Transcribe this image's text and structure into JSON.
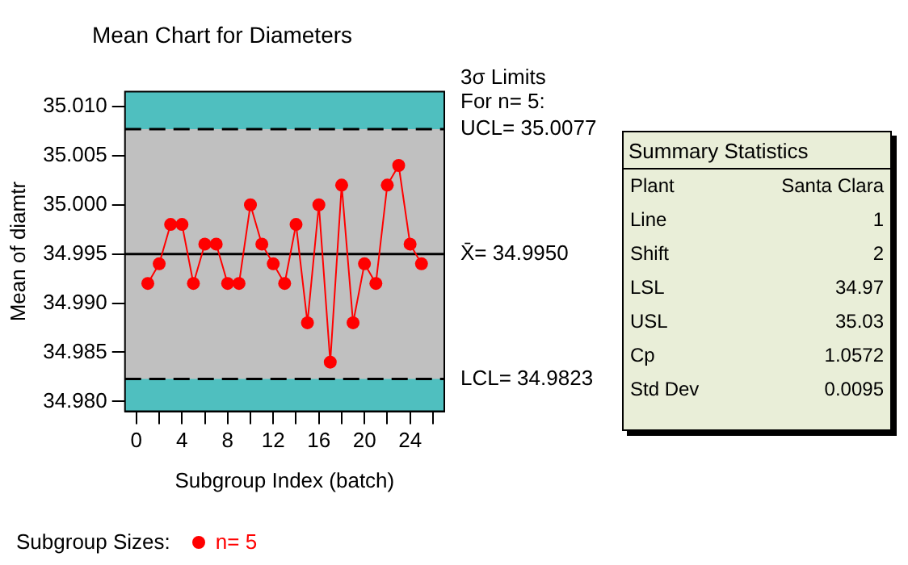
{
  "chart_data": [
    {
      "type": "line",
      "title": "Mean Chart for Diameters",
      "xlabel": "Subgroup Index (batch)",
      "ylabel": "Mean of diamtr",
      "x": [
        1,
        2,
        3,
        4,
        5,
        6,
        7,
        8,
        9,
        10,
        11,
        12,
        13,
        14,
        15,
        16,
        17,
        18,
        19,
        20,
        21,
        22,
        23,
        24,
        25
      ],
      "series": [
        {
          "name": "n= 5",
          "color": "#ff0000",
          "values": [
            34.992,
            34.994,
            34.998,
            34.998,
            34.992,
            34.996,
            34.996,
            34.992,
            34.992,
            35.0,
            34.996,
            34.994,
            34.992,
            34.998,
            34.988,
            35.0,
            34.984,
            35.002,
            34.988,
            34.994,
            34.992,
            35.002,
            35.004,
            34.996,
            34.994
          ]
        }
      ],
      "xlim": [
        -1,
        27
      ],
      "xticks": [
        0,
        {
          "value": 2,
          "label": null
        },
        4,
        {
          "value": 6,
          "label": null
        },
        8,
        {
          "value": 10,
          "label": null
        },
        12,
        {
          "value": 14,
          "label": null
        },
        16,
        {
          "value": 18,
          "label": null
        },
        20,
        {
          "value": 22,
          "label": null
        },
        24,
        {
          "value": 26,
          "label": null
        }
      ],
      "ylim": [
        34.979,
        35.0115
      ],
      "yticks": [
        {
          "value": 34.98,
          "label": "34.980"
        },
        {
          "value": 34.985,
          "label": "34.985"
        },
        {
          "value": 34.99,
          "label": "34.990"
        },
        {
          "value": 34.995,
          "label": "34.995"
        },
        {
          "value": 35.0,
          "label": "35.000"
        },
        {
          "value": 35.005,
          "label": "35.005"
        },
        {
          "value": 35.01,
          "label": "35.010"
        }
      ],
      "ref_lines": [
        {
          "axis": "y",
          "value": 35.0077,
          "label": "UCL= 35.0077",
          "line_style": "dashed",
          "color": "#000000"
        },
        {
          "axis": "y",
          "value": 34.995,
          "label": "X̄= 34.9950",
          "line_style": "solid",
          "color": "#000000"
        },
        {
          "axis": "y",
          "value": 34.9823,
          "label": "LCL= 34.9823",
          "line_style": "dashed",
          "color": "#000000"
        }
      ],
      "bands": [
        {
          "axis": "y",
          "from": 35.0077,
          "to": 35.0115,
          "color": "#4fbfbf"
        },
        {
          "axis": "y",
          "from": 34.979,
          "to": 34.9823,
          "color": "#4fbfbf"
        }
      ],
      "annotations": [
        "3σ Limits",
        "For n= 5:",
        "Subgroup Sizes:"
      ],
      "marker": "circle",
      "line_style": "solid",
      "legend": "bottom left"
    },
    {
      "type": "other",
      "title": "Summary Statistics",
      "annotations": [
        "Plant",
        "Santa Clara",
        "Line",
        "1",
        "Shift",
        "2",
        "LSL",
        "34.97",
        "USL",
        "35.03",
        "Cp",
        "1.0572",
        "Std Dev",
        "0.0095"
      ]
    }
  ]
}
